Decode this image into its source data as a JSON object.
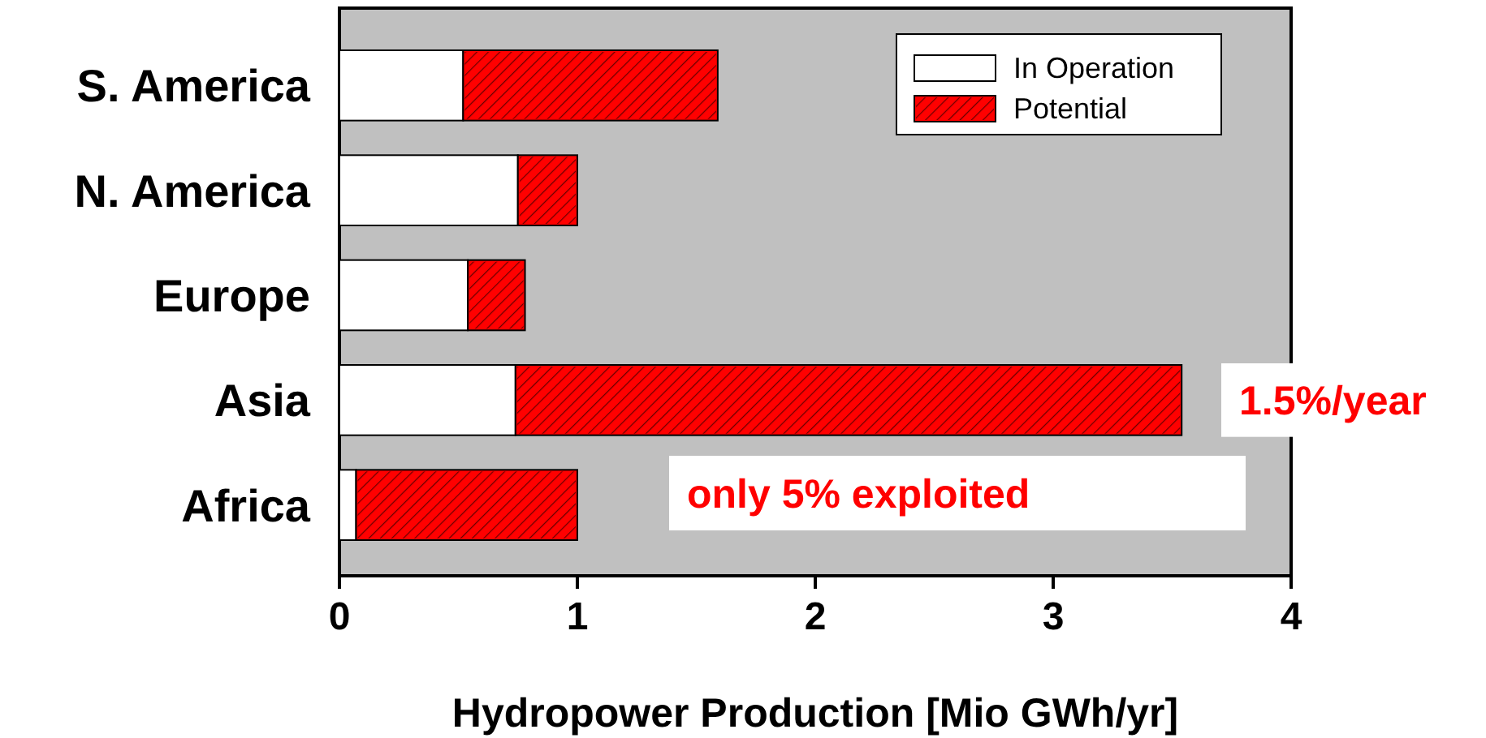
{
  "chart_data": {
    "type": "bar",
    "orientation": "horizontal",
    "stacked": true,
    "xlabel": "Hydropower Production [Mio GWh/yr]",
    "categories": [
      "S. America",
      "N. America",
      "Europe",
      "Asia",
      "Africa"
    ],
    "series": [
      {
        "name": "In Operation",
        "color": "#ffffff",
        "values": [
          0.52,
          0.75,
          0.54,
          0.74,
          0.07
        ]
      },
      {
        "name": "Potential",
        "color": "#ff0000",
        "values": [
          1.07,
          0.25,
          0.24,
          2.8,
          0.93
        ]
      }
    ],
    "xlim": [
      0,
      4
    ],
    "xticks": [
      0,
      1,
      2,
      3,
      4
    ],
    "grid": false,
    "legend": "top right",
    "annotations": [
      "1.5%/year",
      "only 5% exploited"
    ]
  }
}
